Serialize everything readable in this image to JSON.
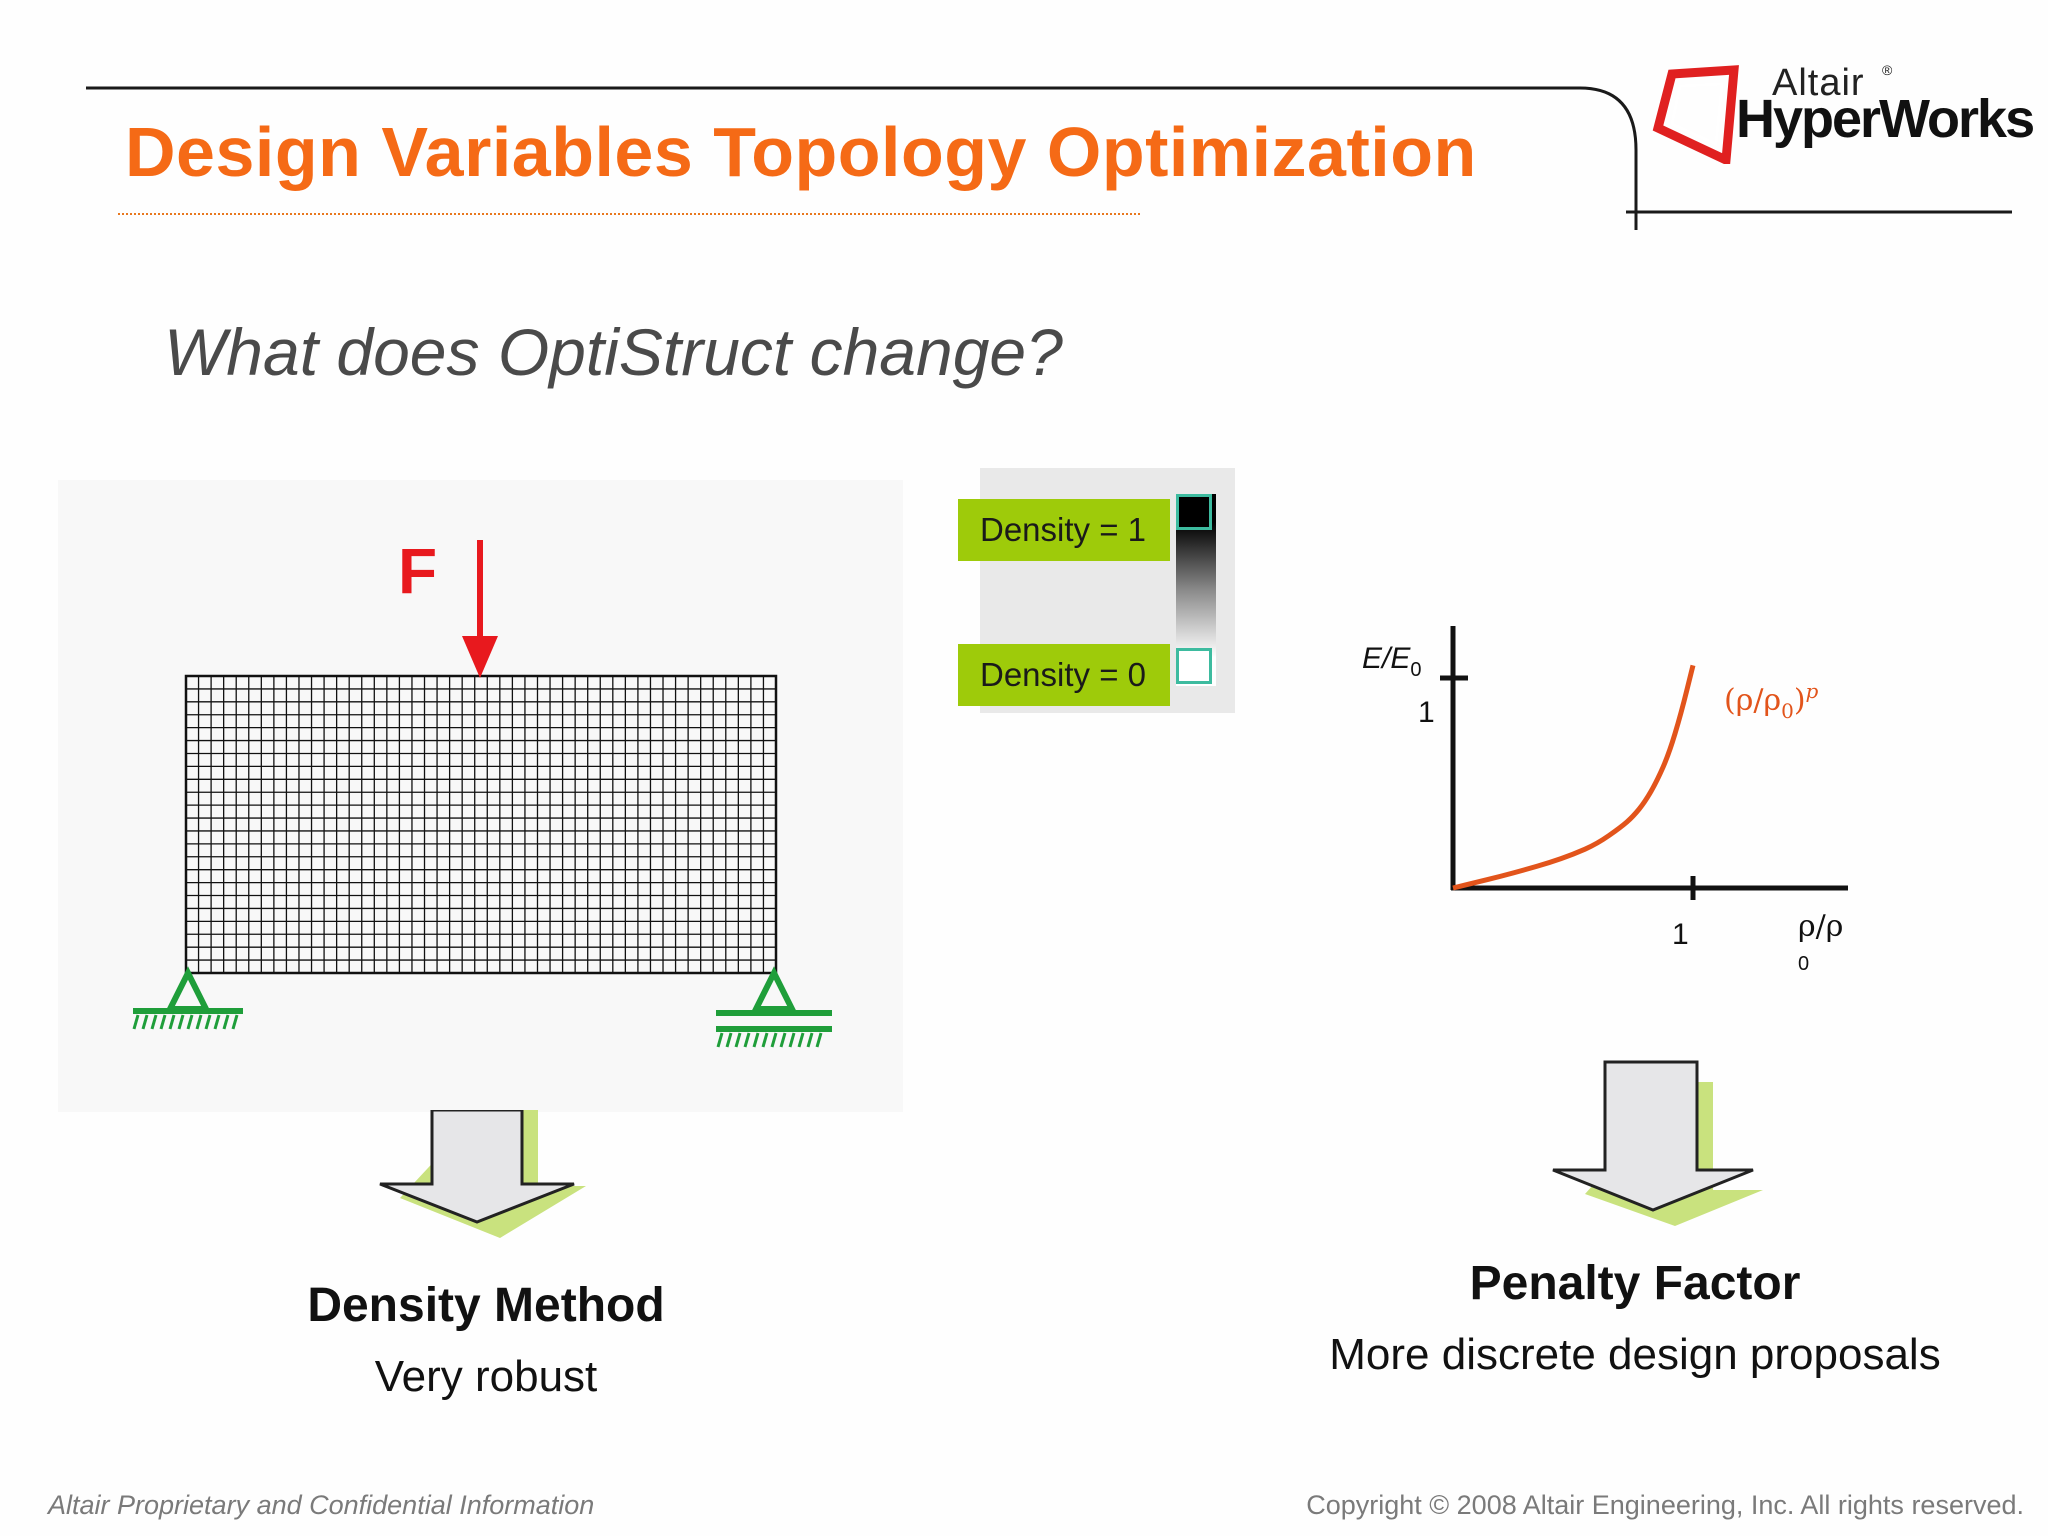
{
  "header": {
    "title": "Design Variables Topology Optimization",
    "logo": {
      "brand_small": "Altair",
      "brand_large": "HyperWorks",
      "registered": "®"
    }
  },
  "subtitle": "What does OptiStruct change?",
  "beam": {
    "force_label": "F",
    "mesh_columns": 47,
    "mesh_rows": 23
  },
  "density_legend": {
    "dense_label": "Density = 1",
    "void_label": "Density = 0"
  },
  "penalty_chart": {
    "ylabel_base": "E/E",
    "ylabel_sub": "0",
    "y_tick": "1",
    "x_tick": "1",
    "xlabel_base": "ρ/ρ",
    "xlabel_sub": "0",
    "curve_label_open": "(ρ/ρ",
    "curve_label_sub": "0",
    "curve_label_close": ")",
    "curve_label_exp": "p"
  },
  "chart_data": {
    "type": "line",
    "title": "",
    "xlabel": "ρ/ρ0",
    "ylabel": "E/E0",
    "xlim": [
      0,
      1
    ],
    "ylim": [
      0,
      1
    ],
    "grid": false,
    "x_ticks": [
      1
    ],
    "y_ticks": [
      1
    ],
    "series": [
      {
        "name": "(ρ/ρ0)p",
        "x": [
          0,
          0.1,
          0.2,
          0.3,
          0.4,
          0.5,
          0.6,
          0.7,
          0.75,
          0.8,
          0.85,
          0.9,
          0.95,
          1.0
        ],
        "y": [
          0,
          0.028,
          0.056,
          0.087,
          0.12,
          0.16,
          0.21,
          0.29,
          0.34,
          0.41,
          0.51,
          0.64,
          0.83,
          1.06
        ]
      }
    ],
    "colors": {
      "curve": "#e2541b",
      "axes": "#111111"
    }
  },
  "left_method": {
    "title": "Density Method",
    "description": "Very robust"
  },
  "right_method": {
    "title": "Penalty Factor",
    "description": "More discrete design proposals"
  },
  "footer": {
    "left": "Altair Proprietary and Confidential Information",
    "right": "Copyright © 2008 Altair Engineering, Inc. All rights reserved."
  },
  "colors": {
    "title": "#f56a16",
    "force_arrow": "#e8191e",
    "support": "#1f9e3a",
    "green_accent": "#9ecb0a",
    "logo_red": "#e02020"
  },
  "icons": [
    "force-arrow-icon",
    "pin-support-icon",
    "down-arrow-icon",
    "altair-logo-icon"
  ]
}
